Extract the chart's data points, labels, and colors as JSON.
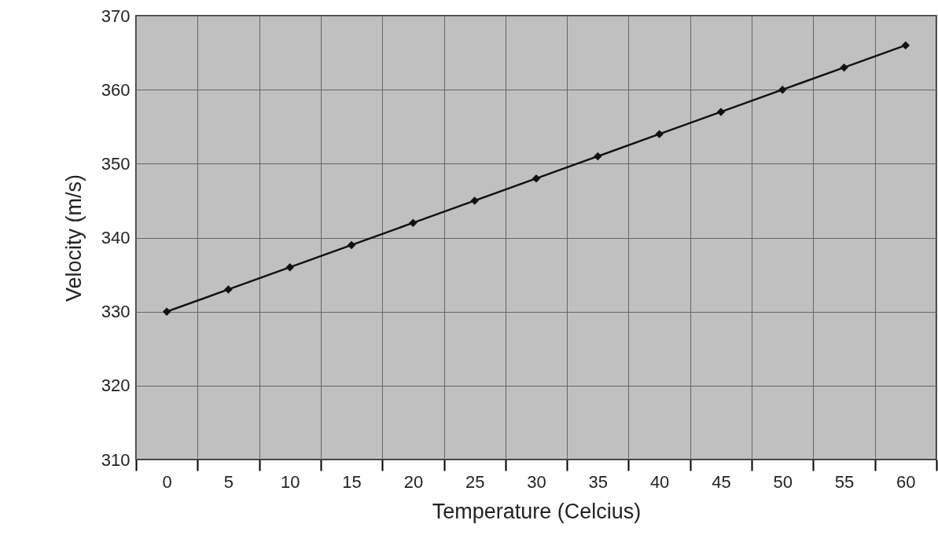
{
  "chart_data": {
    "type": "line",
    "xlabel": "Temperature (Celcius)",
    "ylabel": "Velocity (m/s)",
    "categories": [
      "0",
      "5",
      "10",
      "15",
      "20",
      "25",
      "30",
      "35",
      "40",
      "45",
      "50",
      "55",
      "60"
    ],
    "series": [
      {
        "color": "#111111",
        "values": [
          330,
          333,
          336,
          339,
          342,
          345,
          348,
          351,
          354,
          357,
          360,
          363,
          366
        ]
      }
    ],
    "ylim": [
      310,
      370
    ],
    "yticks": [
      310,
      320,
      330,
      340,
      350,
      360,
      370
    ],
    "grid": true,
    "marker": "diamond",
    "line_style": "solid"
  }
}
